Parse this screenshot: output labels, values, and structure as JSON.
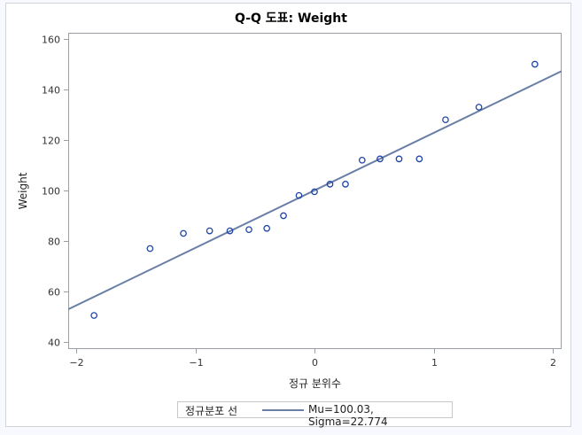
{
  "title": "Q-Q 도표: Weight",
  "legend": {
    "title": "정규분포 선",
    "entry": "Mu=100.03, Sigma=22.774"
  },
  "colors": {
    "marker": "#1f45a8",
    "line": "#6a7fa6",
    "axis": "#9a9ea5"
  },
  "chart_data": {
    "type": "scatter",
    "title": "Q-Q 도표: Weight",
    "xlabel": "정규 분위수",
    "ylabel": "Weight",
    "xlim": [
      -2.07,
      2.07
    ],
    "ylim": [
      37.5,
      162.5
    ],
    "x_ticks": [
      -2,
      -1,
      0,
      1,
      2
    ],
    "x_tick_labels": [
      "−2",
      "−1",
      "0",
      "1",
      "2"
    ],
    "y_ticks": [
      40,
      60,
      80,
      100,
      120,
      140,
      160
    ],
    "y_tick_labels": [
      "40",
      "60",
      "80",
      "100",
      "120",
      "140",
      "160"
    ],
    "grid": false,
    "legend_position": "bottom",
    "series": [
      {
        "name": "Weight",
        "kind": "scatter",
        "x": [
          -1.85,
          -1.38,
          -1.1,
          -0.88,
          -0.71,
          -0.55,
          -0.4,
          -0.26,
          -0.13,
          0.0,
          0.13,
          0.26,
          0.4,
          0.55,
          0.71,
          0.88,
          1.1,
          1.38,
          1.85
        ],
        "y": [
          50.5,
          77.0,
          83.0,
          84.0,
          84.0,
          84.5,
          85.0,
          90.0,
          98.0,
          99.5,
          102.5,
          102.5,
          112.0,
          112.5,
          112.5,
          112.5,
          128.0,
          133.0,
          150.0
        ]
      },
      {
        "name": "정규분포 선: Mu=100.03, Sigma=22.774",
        "kind": "line",
        "intercept": 100.03,
        "slope": 22.774
      }
    ]
  }
}
